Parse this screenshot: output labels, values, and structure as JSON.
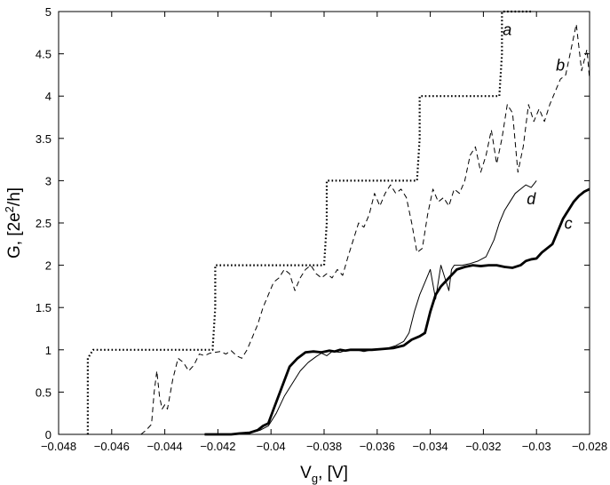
{
  "chart_data": {
    "type": "line",
    "xlabel": "V",
    "xlabel_sub": "g",
    "xlabel_unit": ", [V]",
    "ylabel": "G, [2e",
    "ylabel_sup": "2",
    "ylabel_tail": "/h]",
    "xlim": [
      -0.048,
      -0.028
    ],
    "ylim": [
      0,
      5
    ],
    "grid": false,
    "x_ticks": [
      -0.048,
      -0.046,
      -0.044,
      -0.042,
      -0.04,
      -0.038,
      -0.036,
      -0.034,
      -0.032,
      -0.03,
      -0.028
    ],
    "x_tick_labels": [
      "−0.048",
      "−0.046",
      "−0.044",
      "−0.042",
      "−0.04",
      "−0.038",
      "−0.036",
      "−0.034",
      "−0.032",
      "−0.03",
      "−0.028"
    ],
    "y_ticks": [
      0,
      0.5,
      1,
      1.5,
      2,
      2.5,
      3,
      3.5,
      4,
      4.5,
      5
    ],
    "y_tick_labels": [
      "0",
      "0.5",
      "1",
      "1.5",
      "2",
      "2.5",
      "3",
      "3.5",
      "4",
      "4.5",
      "5"
    ],
    "series": [
      {
        "name": "a",
        "style": "dotted",
        "label_at": [
          -0.0311,
          4.72
        ],
        "x": [
          -0.0469,
          -0.0469,
          -0.0467,
          -0.0467,
          -0.0422,
          -0.0421,
          -0.0421,
          -0.038,
          -0.0379,
          -0.0379,
          -0.0345,
          -0.0344,
          -0.0344,
          -0.0314,
          -0.0313,
          -0.0313,
          -0.0302
        ],
        "y": [
          0,
          0.9,
          1,
          1,
          1,
          1.5,
          2,
          2,
          2.5,
          3,
          3,
          3.5,
          4,
          4,
          4.5,
          5,
          5
        ]
      },
      {
        "name": "b",
        "style": "dashed",
        "label_at": [
          -0.0291,
          4.3
        ],
        "x": [
          -0.0449,
          -0.0447,
          -0.0445,
          -0.0444,
          -0.0443,
          -0.0442,
          -0.0441,
          -0.044,
          -0.0439,
          -0.0437,
          -0.0435,
          -0.0433,
          -0.0431,
          -0.0429,
          -0.0427,
          -0.0425,
          -0.0423,
          -0.0421,
          -0.0419,
          -0.0417,
          -0.0415,
          -0.0413,
          -0.0411,
          -0.0409,
          -0.0407,
          -0.0405,
          -0.0403,
          -0.0401,
          -0.0399,
          -0.0397,
          -0.0395,
          -0.0393,
          -0.0391,
          -0.0389,
          -0.0387,
          -0.0385,
          -0.0383,
          -0.0381,
          -0.0379,
          -0.0377,
          -0.0375,
          -0.0373,
          -0.0371,
          -0.0369,
          -0.0367,
          -0.0365,
          -0.0363,
          -0.0361,
          -0.0359,
          -0.0357,
          -0.0355,
          -0.0353,
          -0.0351,
          -0.0349,
          -0.0347,
          -0.0345,
          -0.0343,
          -0.0341,
          -0.0339,
          -0.0337,
          -0.0335,
          -0.0333,
          -0.0331,
          -0.0329,
          -0.0327,
          -0.0325,
          -0.0323,
          -0.0321,
          -0.0319,
          -0.0317,
          -0.0315,
          -0.0313,
          -0.0311,
          -0.0309,
          -0.0307,
          -0.0305,
          -0.0303,
          -0.0301,
          -0.0299,
          -0.0297,
          -0.0295,
          -0.0293,
          -0.0291,
          -0.0289,
          -0.0287,
          -0.0285,
          -0.0283,
          -0.0281,
          -0.028
        ],
        "y": [
          0,
          0.05,
          0.12,
          0.5,
          0.75,
          0.45,
          0.3,
          0.35,
          0.3,
          0.65,
          0.9,
          0.85,
          0.75,
          0.82,
          0.95,
          0.93,
          0.96,
          0.97,
          0.98,
          0.95,
          0.99,
          0.93,
          0.9,
          1.0,
          1.15,
          1.3,
          1.5,
          1.65,
          1.8,
          1.85,
          1.95,
          1.9,
          1.7,
          1.85,
          1.95,
          2.0,
          1.9,
          1.85,
          1.9,
          1.85,
          1.95,
          1.88,
          2.1,
          2.3,
          2.5,
          2.45,
          2.6,
          2.85,
          2.7,
          2.85,
          2.95,
          2.85,
          2.9,
          2.8,
          2.5,
          2.15,
          2.2,
          2.6,
          2.9,
          2.75,
          2.8,
          2.7,
          2.9,
          2.85,
          3.0,
          3.3,
          3.4,
          3.1,
          3.3,
          3.6,
          3.2,
          3.5,
          3.9,
          3.8,
          3.1,
          3.4,
          3.9,
          3.7,
          3.85,
          3.7,
          3.9,
          4.05,
          4.2,
          4.25,
          4.55,
          4.85,
          4.3,
          4.55,
          4.2
        ]
      },
      {
        "name": "c",
        "style": "thick",
        "label_at": [
          -0.0288,
          2.43
        ],
        "x": [
          -0.0425,
          -0.0415,
          -0.0412,
          -0.0408,
          -0.0405,
          -0.0403,
          -0.0401,
          -0.0399,
          -0.0396,
          -0.0393,
          -0.039,
          -0.0387,
          -0.0384,
          -0.0381,
          -0.0378,
          -0.0376,
          -0.0374,
          -0.0372,
          -0.037,
          -0.0366,
          -0.0362,
          -0.0358,
          -0.0354,
          -0.035,
          -0.0347,
          -0.0344,
          -0.0342,
          -0.034,
          -0.0338,
          -0.0336,
          -0.0333,
          -0.033,
          -0.0327,
          -0.0324,
          -0.0321,
          -0.0318,
          -0.0315,
          -0.0312,
          -0.0309,
          -0.0306,
          -0.0304,
          -0.0302,
          -0.03,
          -0.0298,
          -0.0296,
          -0.0294,
          -0.0292,
          -0.029,
          -0.0288,
          -0.0286,
          -0.0284,
          -0.0282,
          -0.028
        ],
        "y": [
          0,
          0,
          0.01,
          0.02,
          0.05,
          0.1,
          0.13,
          0.3,
          0.55,
          0.8,
          0.9,
          0.97,
          0.98,
          0.97,
          0.99,
          0.98,
          1.0,
          0.99,
          1.0,
          1.0,
          1.0,
          1.01,
          1.02,
          1.05,
          1.12,
          1.16,
          1.2,
          1.45,
          1.65,
          1.75,
          1.85,
          1.95,
          1.98,
          2.0,
          1.99,
          2.0,
          2.0,
          1.98,
          1.97,
          2.0,
          2.05,
          2.07,
          2.08,
          2.15,
          2.2,
          2.25,
          2.4,
          2.55,
          2.65,
          2.75,
          2.82,
          2.87,
          2.9
        ]
      },
      {
        "name": "d",
        "style": "thin",
        "label_at": [
          -0.0302,
          2.72
        ],
        "x": [
          -0.0415,
          -0.0408,
          -0.0404,
          -0.0401,
          -0.0398,
          -0.0395,
          -0.0392,
          -0.0389,
          -0.0386,
          -0.0383,
          -0.0381,
          -0.0379,
          -0.0377,
          -0.0374,
          -0.0371,
          -0.0368,
          -0.0365,
          -0.0362,
          -0.0359,
          -0.0356,
          -0.0353,
          -0.035,
          -0.0348,
          -0.0346,
          -0.0344,
          -0.0342,
          -0.034,
          -0.0338,
          -0.0336,
          -0.0334,
          -0.0333,
          -0.0332,
          -0.0331,
          -0.033,
          -0.0328,
          -0.0325,
          -0.0322,
          -0.0319,
          -0.0316,
          -0.0314,
          -0.0312,
          -0.031,
          -0.0308,
          -0.0306,
          -0.0304,
          -0.0302,
          -0.03
        ],
        "y": [
          0,
          0.02,
          0.05,
          0.1,
          0.25,
          0.45,
          0.6,
          0.75,
          0.85,
          0.92,
          0.96,
          0.93,
          0.98,
          0.97,
          1.0,
          1.0,
          0.98,
          1.0,
          1.0,
          1.02,
          1.05,
          1.1,
          1.2,
          1.45,
          1.65,
          1.8,
          1.95,
          1.6,
          2.0,
          1.8,
          1.7,
          1.95,
          2.0,
          2.0,
          2.0,
          2.02,
          2.05,
          2.1,
          2.3,
          2.5,
          2.65,
          2.75,
          2.85,
          2.9,
          2.95,
          2.92,
          3.0
        ]
      }
    ]
  }
}
